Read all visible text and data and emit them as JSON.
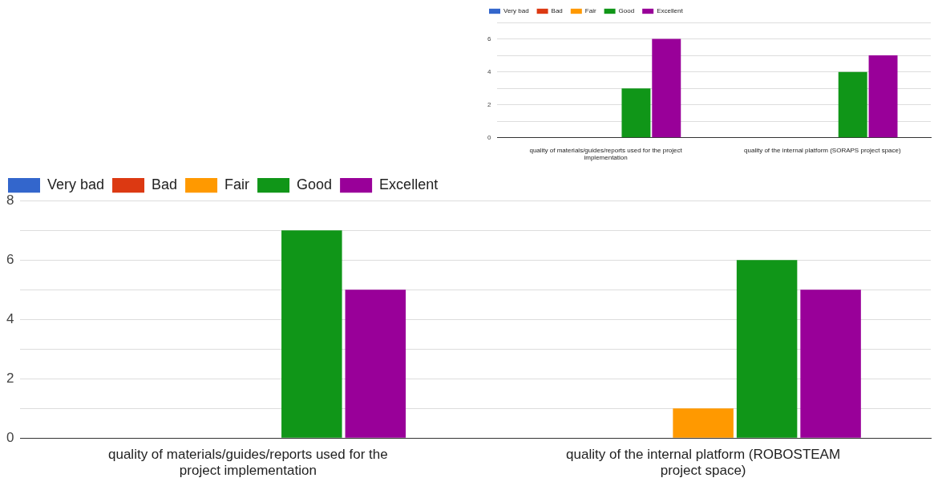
{
  "chart_data": [
    {
      "type": "bar",
      "categories": [
        "quality of materials/guides/reports used for the project implementation",
        "quality of the internal platform (SORAPS project space)"
      ],
      "series": [
        {
          "name": "Very bad",
          "color": "#3366cc",
          "values": [
            0,
            0
          ]
        },
        {
          "name": "Bad",
          "color": "#dc3912",
          "values": [
            0,
            0
          ]
        },
        {
          "name": "Fair",
          "color": "#ff9900",
          "values": [
            0,
            0
          ]
        },
        {
          "name": "Good",
          "color": "#109618",
          "values": [
            3,
            4
          ]
        },
        {
          "name": "Excellent",
          "color": "#990099",
          "values": [
            6,
            5
          ]
        }
      ],
      "ylim": [
        0,
        7
      ],
      "yticks": [
        0,
        {
          "value": 1,
          "label": null
        },
        2,
        {
          "value": 3,
          "label": null
        },
        4,
        {
          "value": 5,
          "label": null
        },
        6,
        {
          "value": 7,
          "label": null
        }
      ],
      "grid": "y",
      "legend": "top left"
    },
    {
      "type": "bar",
      "categories": [
        "quality of materials/guides/reports used for the project implementation",
        "quality of the internal platform (ROBOSTEAM project space)"
      ],
      "series": [
        {
          "name": "Very bad",
          "color": "#3366cc",
          "values": [
            0,
            0
          ]
        },
        {
          "name": "Bad",
          "color": "#dc3912",
          "values": [
            0,
            0
          ]
        },
        {
          "name": "Fair",
          "color": "#ff9900",
          "values": [
            0,
            1
          ]
        },
        {
          "name": "Good",
          "color": "#109618",
          "values": [
            7,
            6
          ]
        },
        {
          "name": "Excellent",
          "color": "#990099",
          "values": [
            5,
            5
          ]
        }
      ],
      "ylim": [
        0,
        8
      ],
      "yticks": [
        0,
        {
          "value": 1,
          "label": null
        },
        2,
        {
          "value": 3,
          "label": null
        },
        4,
        {
          "value": 5,
          "label": null
        },
        6,
        {
          "value": 7,
          "label": null
        },
        8
      ],
      "grid": "y",
      "legend": "top left"
    }
  ]
}
